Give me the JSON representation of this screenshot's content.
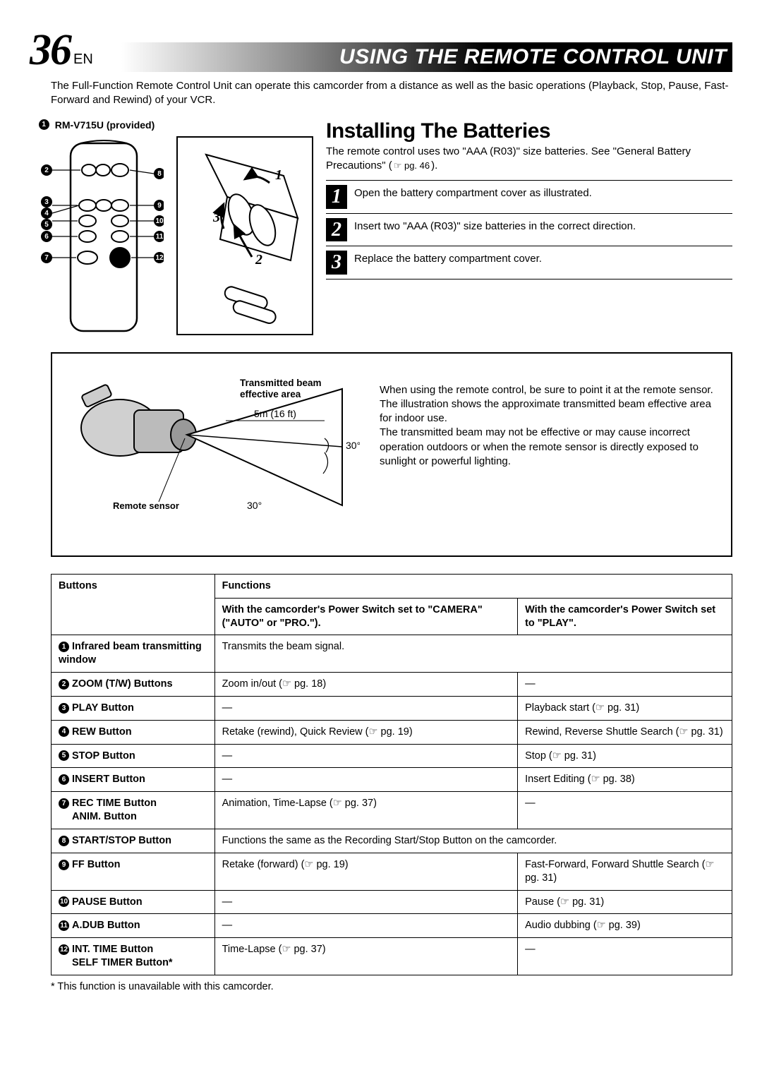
{
  "page": {
    "number": "36",
    "lang": "EN"
  },
  "title": "USING THE REMOTE CONTROL UNIT",
  "intro": "The Full-Function Remote Control Unit can operate this camcorder from a distance as well as the basic operations (Playback, Stop, Pause, Fast-Forward and Rewind) of your VCR.",
  "remote": {
    "label": "RM-V715U (provided)",
    "callouts": [
      "1",
      "2",
      "3",
      "4",
      "5",
      "6",
      "7",
      "8",
      "9",
      "10",
      "11",
      "12"
    ]
  },
  "battery_diagram": {
    "step_labels": [
      "1",
      "2",
      "3"
    ]
  },
  "install": {
    "heading": "Installing The Batteries",
    "desc_pre": "The remote control uses two \"AAA (R03)\" size batteries. See \"General Battery Precautions\" (",
    "desc_ref": "☞ pg. 46",
    "desc_post": ").",
    "steps": [
      {
        "n": "1",
        "text": "Open the battery compartment cover as illustrated."
      },
      {
        "n": "2",
        "text": "Insert two \"AAA (R03)\" size batteries in the correct direction."
      },
      {
        "n": "3",
        "text": "Replace the battery compartment cover."
      }
    ]
  },
  "beam": {
    "label_title": "Transmitted beam effective area",
    "label_dist": "5m (16 ft)",
    "label_angle_top": "30°",
    "label_angle_bot": "30°",
    "label_sensor": "Remote sensor",
    "para1": "When using the remote control, be sure to point it at the remote sensor. The illustration shows the approximate transmitted beam effective area for indoor use.",
    "para2": "The transmitted beam may not be effective or may cause incorrect operation outdoors or when the remote sensor is directly exposed to sunlight or powerful lighting."
  },
  "table": {
    "header_buttons": "Buttons",
    "header_functions": "Functions",
    "header_camera": "With the camcorder's Power Switch set to \"CAMERA\" (\"AUTO\" or \"PRO.\").",
    "header_play": "With the camcorder's Power Switch set to \"PLAY\".",
    "rows": [
      {
        "n": "1",
        "btn": "Infrared beam transmitting window",
        "cam": "Transmits the beam signal.",
        "play": null,
        "span": true
      },
      {
        "n": "2",
        "btn": "ZOOM (T/W) Buttons",
        "cam": "Zoom in/out (☞ pg. 18)",
        "play": "—"
      },
      {
        "n": "3",
        "btn": "PLAY Button",
        "cam": "—",
        "play": "Playback start (☞ pg. 31)"
      },
      {
        "n": "4",
        "btn": "REW Button",
        "cam": "Retake (rewind), Quick Review (☞ pg. 19)",
        "play": "Rewind, Reverse Shuttle Search (☞ pg. 31)"
      },
      {
        "n": "5",
        "btn": "STOP Button",
        "cam": "—",
        "play": "Stop (☞ pg. 31)"
      },
      {
        "n": "6",
        "btn": "INSERT Button",
        "cam": "—",
        "play": "Insert Editing (☞ pg. 38)"
      },
      {
        "n": "7",
        "btn": "REC TIME Button",
        "btn2": "ANIM. Button",
        "cam": "Animation, Time-Lapse (☞ pg. 37)",
        "play": "—"
      },
      {
        "n": "8",
        "btn": "START/STOP Button",
        "cam": "Functions the same as the Recording Start/Stop Button on the camcorder.",
        "play": null,
        "span": true
      },
      {
        "n": "9",
        "btn": "FF Button",
        "cam": "Retake (forward) (☞ pg. 19)",
        "play": "Fast-Forward, Forward Shuttle Search (☞ pg. 31)"
      },
      {
        "n": "10",
        "btn": "PAUSE Button",
        "cam": "—",
        "play": "Pause (☞ pg. 31)"
      },
      {
        "n": "11",
        "btn": "A.DUB Button",
        "cam": "—",
        "play": "Audio dubbing (☞ pg. 39)"
      },
      {
        "n": "12",
        "btn": "INT. TIME Button",
        "btn2": "SELF TIMER Button*",
        "cam": "Time-Lapse (☞ pg. 37)",
        "play": "—"
      }
    ]
  },
  "footnote": "* This function is unavailable with this camcorder.",
  "colors": {
    "black": "#000000",
    "white": "#ffffff",
    "grad_mid": "#888888"
  }
}
